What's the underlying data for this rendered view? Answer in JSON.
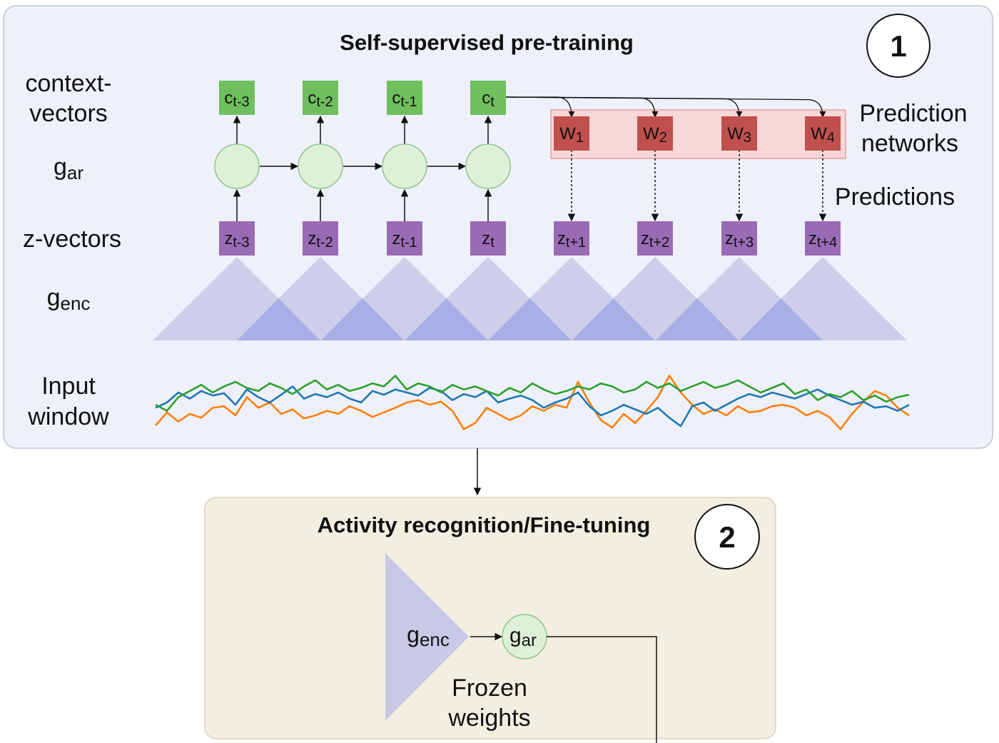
{
  "panel1": {
    "title": "Self-supervised pre-training",
    "number": "1",
    "rows": {
      "context_1": "context-",
      "context_2": "vectors",
      "gar_base": "g",
      "gar_sub": "ar",
      "z": "z-vectors",
      "genc_base": "g",
      "genc_sub": "enc",
      "input_1": "Input",
      "input_2": "window"
    },
    "contexts": [
      {
        "base": "c",
        "sub": "t-3"
      },
      {
        "base": "c",
        "sub": "t-2"
      },
      {
        "base": "c",
        "sub": "t-1"
      },
      {
        "base": "c",
        "sub": "t"
      }
    ],
    "zs": [
      {
        "base": "z",
        "sub": "t-3"
      },
      {
        "base": "z",
        "sub": "t-2"
      },
      {
        "base": "z",
        "sub": "t-1"
      },
      {
        "base": "z",
        "sub": "t"
      },
      {
        "base": "z",
        "sub": "t+1"
      },
      {
        "base": "z",
        "sub": "t+2"
      },
      {
        "base": "z",
        "sub": "t+3"
      },
      {
        "base": "z",
        "sub": "t+4"
      }
    ],
    "ws": [
      {
        "base": "W",
        "sub": "1"
      },
      {
        "base": "W",
        "sub": "2"
      },
      {
        "base": "W",
        "sub": "3"
      },
      {
        "base": "W",
        "sub": "4"
      }
    ],
    "prediction_networks_1": "Prediction",
    "prediction_networks_2": "networks",
    "predictions": "Predictions"
  },
  "panel2": {
    "title": "Activity recognition/Fine-tuning",
    "number": "2",
    "genc_base": "g",
    "genc_sub": "enc",
    "gar_base": "g",
    "gar_sub": "ar",
    "frozen_1": "Frozen",
    "frozen_2": "weights"
  },
  "colors": {
    "panel1_bg": "#eef1fb",
    "panel2_bg": "#f3efe0",
    "context_box": "#6fbf5e",
    "z_box": "#9a6bb5",
    "w_box": "#c0504d",
    "gar_circle": "#dff0d8",
    "pred_net_bg": "#f8d7d7",
    "encoder": "#c9c8e6",
    "encoder_overlap": "#a8aee6",
    "signal_blue": "#1f77b4",
    "signal_orange": "#ff7f0e",
    "signal_green": "#2ca02c"
  },
  "signals": {
    "blue": [
      0.62,
      0.55,
      0.42,
      0.5,
      0.4,
      0.46,
      0.43,
      0.58,
      0.38,
      0.48,
      0.55,
      0.45,
      0.34,
      0.5,
      0.44,
      0.48,
      0.42,
      0.5,
      0.55,
      0.4,
      0.45,
      0.38,
      0.42,
      0.46,
      0.36,
      0.4,
      0.52,
      0.44,
      0.48,
      0.4,
      0.55,
      0.5,
      0.46,
      0.52,
      0.62,
      0.55,
      0.5,
      0.42,
      0.6,
      0.72,
      0.66,
      0.58,
      0.64,
      0.7,
      0.62,
      0.75,
      0.86,
      0.6,
      0.55,
      0.66,
      0.58,
      0.5,
      0.44,
      0.48,
      0.42,
      0.46,
      0.5,
      0.44,
      0.38,
      0.46,
      0.52,
      0.58,
      0.54,
      0.62,
      0.6,
      0.66,
      0.58
    ],
    "orange": [
      0.85,
      0.68,
      0.8,
      0.7,
      0.75,
      0.62,
      0.6,
      0.72,
      0.48,
      0.62,
      0.55,
      0.7,
      0.64,
      0.76,
      0.72,
      0.66,
      0.7,
      0.6,
      0.66,
      0.74,
      0.68,
      0.62,
      0.55,
      0.52,
      0.58,
      0.54,
      0.66,
      0.9,
      0.82,
      0.62,
      0.7,
      0.78,
      0.72,
      0.6,
      0.66,
      0.58,
      0.62,
      0.28,
      0.55,
      0.78,
      0.88,
      0.7,
      0.82,
      0.66,
      0.48,
      0.2,
      0.42,
      0.58,
      0.7,
      0.64,
      0.72,
      0.6,
      0.68,
      0.66,
      0.6,
      0.58,
      0.62,
      0.72,
      0.66,
      0.74,
      0.9,
      0.7,
      0.54,
      0.4,
      0.46,
      0.62,
      0.72
    ],
    "green": [
      0.58,
      0.66,
      0.48,
      0.4,
      0.32,
      0.42,
      0.34,
      0.28,
      0.36,
      0.4,
      0.3,
      0.36,
      0.44,
      0.34,
      0.26,
      0.38,
      0.32,
      0.4,
      0.36,
      0.3,
      0.34,
      0.2,
      0.38,
      0.3,
      0.34,
      0.42,
      0.32,
      0.38,
      0.34,
      0.4,
      0.46,
      0.36,
      0.42,
      0.3,
      0.38,
      0.44,
      0.4,
      0.34,
      0.38,
      0.3,
      0.34,
      0.42,
      0.38,
      0.28,
      0.36,
      0.3,
      0.4,
      0.34,
      0.28,
      0.36,
      0.32,
      0.26,
      0.34,
      0.42,
      0.36,
      0.3,
      0.44,
      0.38,
      0.52,
      0.44,
      0.48,
      0.4,
      0.52,
      0.46,
      0.54,
      0.48,
      0.45
    ]
  }
}
